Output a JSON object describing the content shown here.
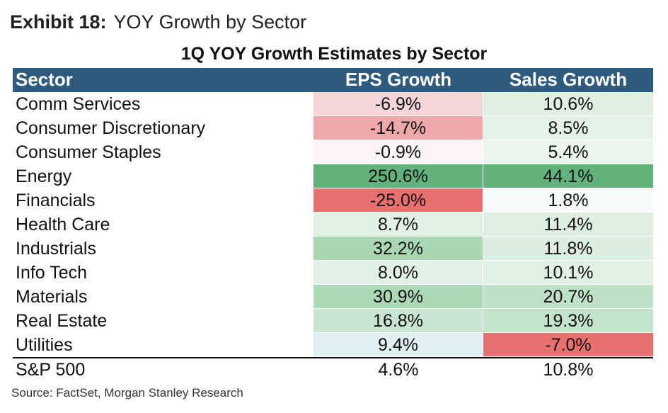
{
  "exhibit": {
    "label": "Exhibit 18:",
    "title": "YOY Growth by Sector"
  },
  "chart_data": {
    "type": "table",
    "title": "1Q YOY Growth Estimates by Sector",
    "columns": [
      "Sector",
      "EPS Growth",
      "Sales Growth"
    ],
    "rows": [
      {
        "sector": "Comm Services",
        "eps": "-6.9%",
        "sales": "10.6%",
        "eps_value": -6.9,
        "sales_value": 10.6,
        "eps_color": "#f5d5d7",
        "sales_color": "#dff0e2"
      },
      {
        "sector": "Consumer Discretionary",
        "eps": "-14.7%",
        "sales": "8.5%",
        "eps_value": -14.7,
        "sales_value": 8.5,
        "eps_color": "#f0a9ab",
        "sales_color": "#e3f2e6"
      },
      {
        "sector": "Consumer Staples",
        "eps": "-0.9%",
        "sales": "5.4%",
        "eps_value": -0.9,
        "sales_value": 5.4,
        "eps_color": "#fcf3f4",
        "sales_color": "#eaf5ec"
      },
      {
        "sector": "Energy",
        "eps": "250.6%",
        "sales": "44.1%",
        "eps_value": 250.6,
        "sales_value": 44.1,
        "eps_color": "#63b27b",
        "sales_color": "#63b27b"
      },
      {
        "sector": "Financials",
        "eps": "-25.0%",
        "sales": "1.8%",
        "eps_value": -25.0,
        "sales_value": 1.8,
        "eps_color": "#e8716f",
        "sales_color": "#f6fbf7"
      },
      {
        "sector": "Health Care",
        "eps": "8.7%",
        "sales": "11.4%",
        "eps_value": 8.7,
        "sales_value": 11.4,
        "eps_color": "#e1f1e4",
        "sales_color": "#ddefe0"
      },
      {
        "sector": "Industrials",
        "eps": "32.2%",
        "sales": "11.8%",
        "eps_value": 32.2,
        "sales_value": 11.8,
        "eps_color": "#a9d7b3",
        "sales_color": "#dceedf"
      },
      {
        "sector": "Info Tech",
        "eps": "8.0%",
        "sales": "10.1%",
        "eps_value": 8.0,
        "sales_value": 10.1,
        "eps_color": "#e2f1e5",
        "sales_color": "#e0f0e3"
      },
      {
        "sector": "Materials",
        "eps": "30.9%",
        "sales": "20.7%",
        "eps_value": 30.9,
        "sales_value": 20.7,
        "eps_color": "#abd8b5",
        "sales_color": "#bfe1c6"
      },
      {
        "sector": "Real Estate",
        "eps": "16.8%",
        "sales": "19.3%",
        "eps_value": 16.8,
        "sales_value": 19.3,
        "eps_color": "#c8e6cf",
        "sales_color": "#c3e3ca"
      },
      {
        "sector": "Utilities",
        "eps": "9.4%",
        "sales": "-7.0%",
        "eps_value": 9.4,
        "sales_value": -7.0,
        "eps_color": "#dfeff2",
        "sales_color": "#e8716f"
      }
    ],
    "total": {
      "sector": "S&P 500",
      "eps": "4.6%",
      "sales": "10.8%",
      "eps_value": 4.6,
      "sales_value": 10.8
    }
  },
  "source": "Source: FactSet, Morgan Stanley Research"
}
